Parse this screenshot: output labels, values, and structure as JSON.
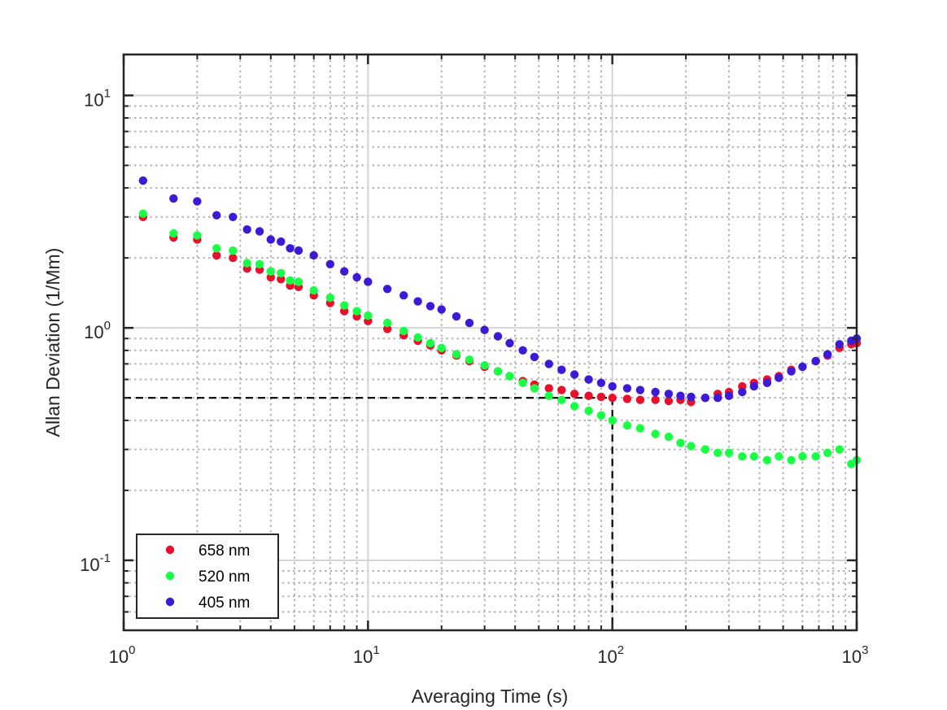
{
  "chart_data": {
    "type": "scatter",
    "title": "",
    "xlabel": "Averaging Time  (s)",
    "ylabel": "Allan Deviation (1/Mm)",
    "xscale": "log",
    "yscale": "log",
    "xlim": [
      1,
      1000
    ],
    "ylim": [
      0.05,
      15
    ],
    "grid": true,
    "legend_position": "bottom-left",
    "x_ticks": [
      {
        "value": 1,
        "base": "10",
        "exp": "0"
      },
      {
        "value": 10,
        "base": "10",
        "exp": "1"
      },
      {
        "value": 100,
        "base": "10",
        "exp": "2"
      },
      {
        "value": 1000,
        "base": "10",
        "exp": "3"
      }
    ],
    "y_ticks": [
      {
        "value": 0.1,
        "base": "10",
        "exp": "-1"
      },
      {
        "value": 1,
        "base": "10",
        "exp": "0"
      },
      {
        "value": 10,
        "base": "10",
        "exp": "1"
      }
    ],
    "reference_lines": {
      "horizontal_y": 0.5,
      "vertical_x": 100,
      "style": "dashed",
      "color": "#000000"
    },
    "series": [
      {
        "name": "658 nm",
        "color": "#e8102a",
        "points": [
          [
            1.2,
            3.0
          ],
          [
            1.6,
            2.45
          ],
          [
            2.0,
            2.4
          ],
          [
            2.4,
            2.05
          ],
          [
            2.8,
            2.0
          ],
          [
            3.2,
            1.8
          ],
          [
            3.6,
            1.78
          ],
          [
            4.0,
            1.65
          ],
          [
            4.4,
            1.62
          ],
          [
            4.8,
            1.52
          ],
          [
            5.2,
            1.5
          ],
          [
            6,
            1.38
          ],
          [
            7,
            1.28
          ],
          [
            8,
            1.18
          ],
          [
            9,
            1.12
          ],
          [
            10,
            1.07
          ],
          [
            12,
            0.99
          ],
          [
            14,
            0.93
          ],
          [
            16,
            0.88
          ],
          [
            18,
            0.84
          ],
          [
            20,
            0.8
          ],
          [
            23,
            0.76
          ],
          [
            26,
            0.72
          ],
          [
            30,
            0.68
          ],
          [
            34,
            0.65
          ],
          [
            38,
            0.62
          ],
          [
            43,
            0.59
          ],
          [
            48,
            0.57
          ],
          [
            55,
            0.55
          ],
          [
            62,
            0.54
          ],
          [
            70,
            0.52
          ],
          [
            80,
            0.51
          ],
          [
            90,
            0.505
          ],
          [
            100,
            0.5
          ],
          [
            115,
            0.495
          ],
          [
            130,
            0.49
          ],
          [
            150,
            0.49
          ],
          [
            170,
            0.485
          ],
          [
            190,
            0.49
          ],
          [
            210,
            0.48
          ],
          [
            240,
            0.5
          ],
          [
            270,
            0.52
          ],
          [
            300,
            0.53
          ],
          [
            340,
            0.56
          ],
          [
            380,
            0.58
          ],
          [
            430,
            0.6
          ],
          [
            480,
            0.62
          ],
          [
            540,
            0.66
          ],
          [
            600,
            0.68
          ],
          [
            680,
            0.72
          ],
          [
            760,
            0.76
          ],
          [
            850,
            0.82
          ],
          [
            950,
            0.85
          ],
          [
            1000,
            0.86
          ]
        ]
      },
      {
        "name": "520 nm",
        "color": "#1aff45",
        "points": [
          [
            1.2,
            3.1
          ],
          [
            1.6,
            2.55
          ],
          [
            2.0,
            2.5
          ],
          [
            2.4,
            2.2
          ],
          [
            2.8,
            2.15
          ],
          [
            3.2,
            1.9
          ],
          [
            3.6,
            1.88
          ],
          [
            4.0,
            1.75
          ],
          [
            4.4,
            1.72
          ],
          [
            4.8,
            1.6
          ],
          [
            5.2,
            1.58
          ],
          [
            6,
            1.45
          ],
          [
            7,
            1.35
          ],
          [
            8,
            1.25
          ],
          [
            9,
            1.18
          ],
          [
            10,
            1.13
          ],
          [
            12,
            1.05
          ],
          [
            14,
            0.97
          ],
          [
            16,
            0.91
          ],
          [
            18,
            0.86
          ],
          [
            20,
            0.82
          ],
          [
            23,
            0.77
          ],
          [
            26,
            0.73
          ],
          [
            30,
            0.69
          ],
          [
            34,
            0.65
          ],
          [
            38,
            0.62
          ],
          [
            43,
            0.58
          ],
          [
            48,
            0.55
          ],
          [
            55,
            0.51
          ],
          [
            62,
            0.49
          ],
          [
            70,
            0.46
          ],
          [
            80,
            0.44
          ],
          [
            90,
            0.42
          ],
          [
            100,
            0.4
          ],
          [
            115,
            0.38
          ],
          [
            130,
            0.37
          ],
          [
            150,
            0.35
          ],
          [
            170,
            0.34
          ],
          [
            190,
            0.32
          ],
          [
            210,
            0.31
          ],
          [
            240,
            0.3
          ],
          [
            270,
            0.29
          ],
          [
            300,
            0.29
          ],
          [
            340,
            0.28
          ],
          [
            380,
            0.28
          ],
          [
            430,
            0.27
          ],
          [
            480,
            0.28
          ],
          [
            540,
            0.27
          ],
          [
            600,
            0.28
          ],
          [
            680,
            0.28
          ],
          [
            760,
            0.29
          ],
          [
            850,
            0.3
          ],
          [
            950,
            0.26
          ],
          [
            1000,
            0.27
          ]
        ]
      },
      {
        "name": "405 nm",
        "color": "#3d1ad6",
        "points": [
          [
            1.2,
            4.3
          ],
          [
            1.6,
            3.6
          ],
          [
            2.0,
            3.5
          ],
          [
            2.4,
            3.05
          ],
          [
            2.8,
            3.0
          ],
          [
            3.2,
            2.65
          ],
          [
            3.6,
            2.6
          ],
          [
            4.0,
            2.4
          ],
          [
            4.4,
            2.35
          ],
          [
            4.8,
            2.2
          ],
          [
            5.2,
            2.15
          ],
          [
            6,
            2.05
          ],
          [
            7,
            1.88
          ],
          [
            8,
            1.75
          ],
          [
            9,
            1.65
          ],
          [
            10,
            1.58
          ],
          [
            12,
            1.47
          ],
          [
            14,
            1.38
          ],
          [
            16,
            1.3
          ],
          [
            18,
            1.24
          ],
          [
            20,
            1.2
          ],
          [
            23,
            1.12
          ],
          [
            26,
            1.05
          ],
          [
            30,
            0.98
          ],
          [
            34,
            0.92
          ],
          [
            38,
            0.86
          ],
          [
            43,
            0.8
          ],
          [
            48,
            0.75
          ],
          [
            55,
            0.7
          ],
          [
            62,
            0.66
          ],
          [
            70,
            0.63
          ],
          [
            80,
            0.6
          ],
          [
            90,
            0.58
          ],
          [
            100,
            0.56
          ],
          [
            115,
            0.55
          ],
          [
            130,
            0.54
          ],
          [
            150,
            0.53
          ],
          [
            170,
            0.52
          ],
          [
            190,
            0.51
          ],
          [
            210,
            0.505
          ],
          [
            240,
            0.5
          ],
          [
            270,
            0.5
          ],
          [
            300,
            0.51
          ],
          [
            340,
            0.53
          ],
          [
            380,
            0.56
          ],
          [
            430,
            0.58
          ],
          [
            480,
            0.61
          ],
          [
            540,
            0.65
          ],
          [
            600,
            0.68
          ],
          [
            680,
            0.72
          ],
          [
            760,
            0.77
          ],
          [
            850,
            0.85
          ],
          [
            950,
            0.88
          ],
          [
            1000,
            0.9
          ]
        ]
      }
    ]
  }
}
